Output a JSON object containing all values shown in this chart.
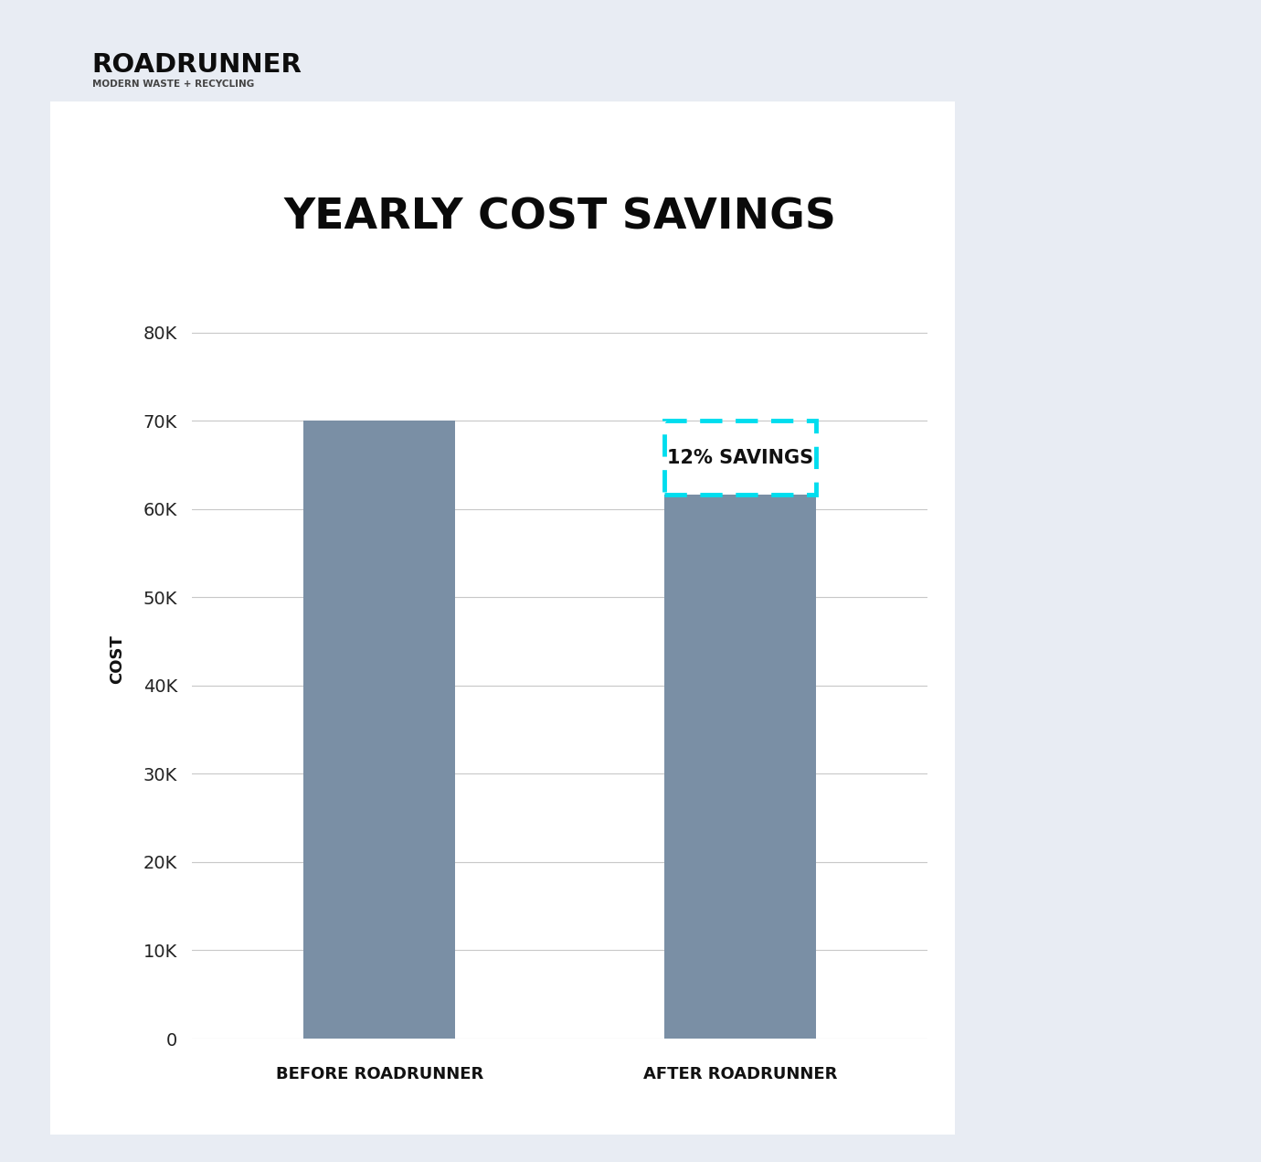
{
  "title": "YEARLY COST SAVINGS",
  "categories": [
    "BEFORE ROADRUNNER",
    "AFTER ROADRUNNER"
  ],
  "values": [
    70000,
    61600
  ],
  "bar_color": "#7a8fa5",
  "ylabel": "COST",
  "yticks": [
    0,
    10000,
    20000,
    30000,
    40000,
    50000,
    60000,
    70000,
    80000
  ],
  "ytick_labels": [
    "0",
    "10K",
    "20K",
    "30K",
    "40K",
    "50K",
    "60K",
    "70K",
    "80K"
  ],
  "ylim_max": 86000,
  "page_bg": "#e8ecf3",
  "chart_bg": "#ffffff",
  "savings_text": "12% SAVINGS",
  "savings_color": "#00ddee",
  "grid_color": "#c8c8c8",
  "title_fontsize": 34,
  "xlabel_fontsize": 13,
  "ylabel_fontsize": 13,
  "ytick_fontsize": 14,
  "savings_fontsize": 15,
  "bar_width": 0.42,
  "x_positions": [
    0,
    1
  ],
  "xlim": [
    -0.52,
    1.52
  ]
}
